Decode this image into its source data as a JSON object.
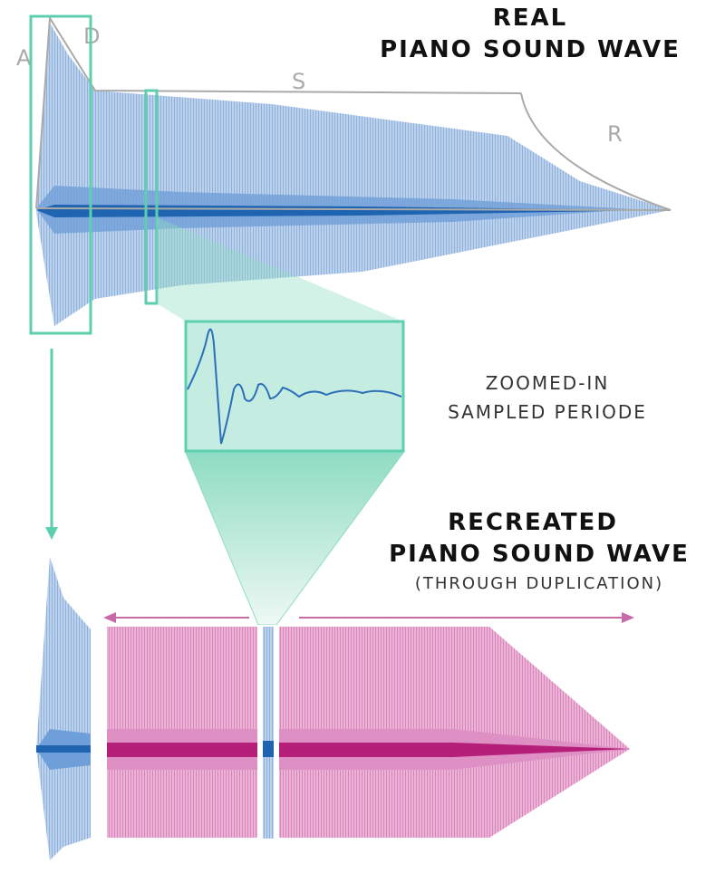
{
  "header": {
    "title_lines": [
      "REAL",
      "PIANO SOUND WAVE"
    ]
  },
  "envelope": {
    "labels": [
      "A",
      "D",
      "S",
      "R"
    ]
  },
  "zoom": {
    "caption_lines": [
      "ZOOMED-IN",
      "SAMPLED PERIODE"
    ]
  },
  "recreated": {
    "title_lines": [
      "RECREATED",
      "PIANO SOUND WAVE"
    ],
    "subtitle": "(THROUGH DUPLICATION)"
  }
}
